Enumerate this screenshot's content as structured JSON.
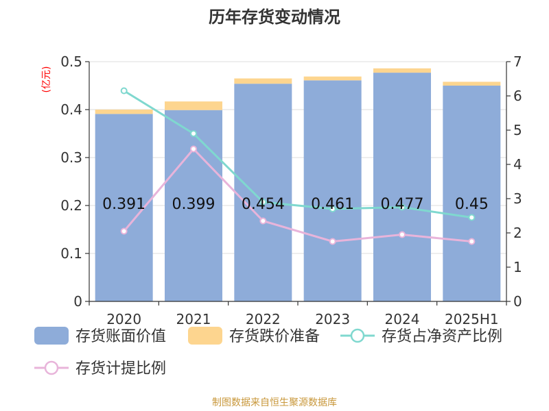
{
  "chart_data": {
    "type": "bar",
    "title": "历年存货变动情况",
    "categories": [
      "2020",
      "2021",
      "2022",
      "2023",
      "2024",
      "2025H1"
    ],
    "y_left_unit": "(亿元)",
    "y_left_ticks": [
      "0",
      "0.1",
      "0.2",
      "0.3",
      "0.4",
      "0.5"
    ],
    "y_right_ticks": [
      "0",
      "1",
      "2",
      "3",
      "4",
      "5",
      "6",
      "7"
    ],
    "ylim_left": [
      0,
      0.5
    ],
    "ylim_right": [
      0,
      7
    ],
    "series": [
      {
        "name": "存货账面价值",
        "type": "bar",
        "axis": "left",
        "color": "#8eacd9",
        "values": [
          0.391,
          0.399,
          0.454,
          0.461,
          0.477,
          0.45
        ],
        "labels": [
          "0.391",
          "0.399",
          "0.454",
          "0.461",
          "0.477",
          "0.45"
        ]
      },
      {
        "name": "存货跌价准备",
        "type": "bar-stack",
        "axis": "left",
        "color": "#fdd58f",
        "values": [
          0.009,
          0.018,
          0.011,
          0.008,
          0.009,
          0.008
        ]
      },
      {
        "name": "存货占净资产比例",
        "type": "line",
        "axis": "right",
        "color": "#7fd8cf",
        "values": [
          6.15,
          4.9,
          2.9,
          2.7,
          2.75,
          2.45
        ]
      },
      {
        "name": "存货计提比例",
        "type": "line",
        "axis": "right",
        "color": "#e8b4da",
        "values": [
          2.05,
          4.45,
          2.35,
          1.75,
          1.95,
          1.75
        ]
      }
    ],
    "source": "制图数据来自恒生聚源数据库"
  }
}
